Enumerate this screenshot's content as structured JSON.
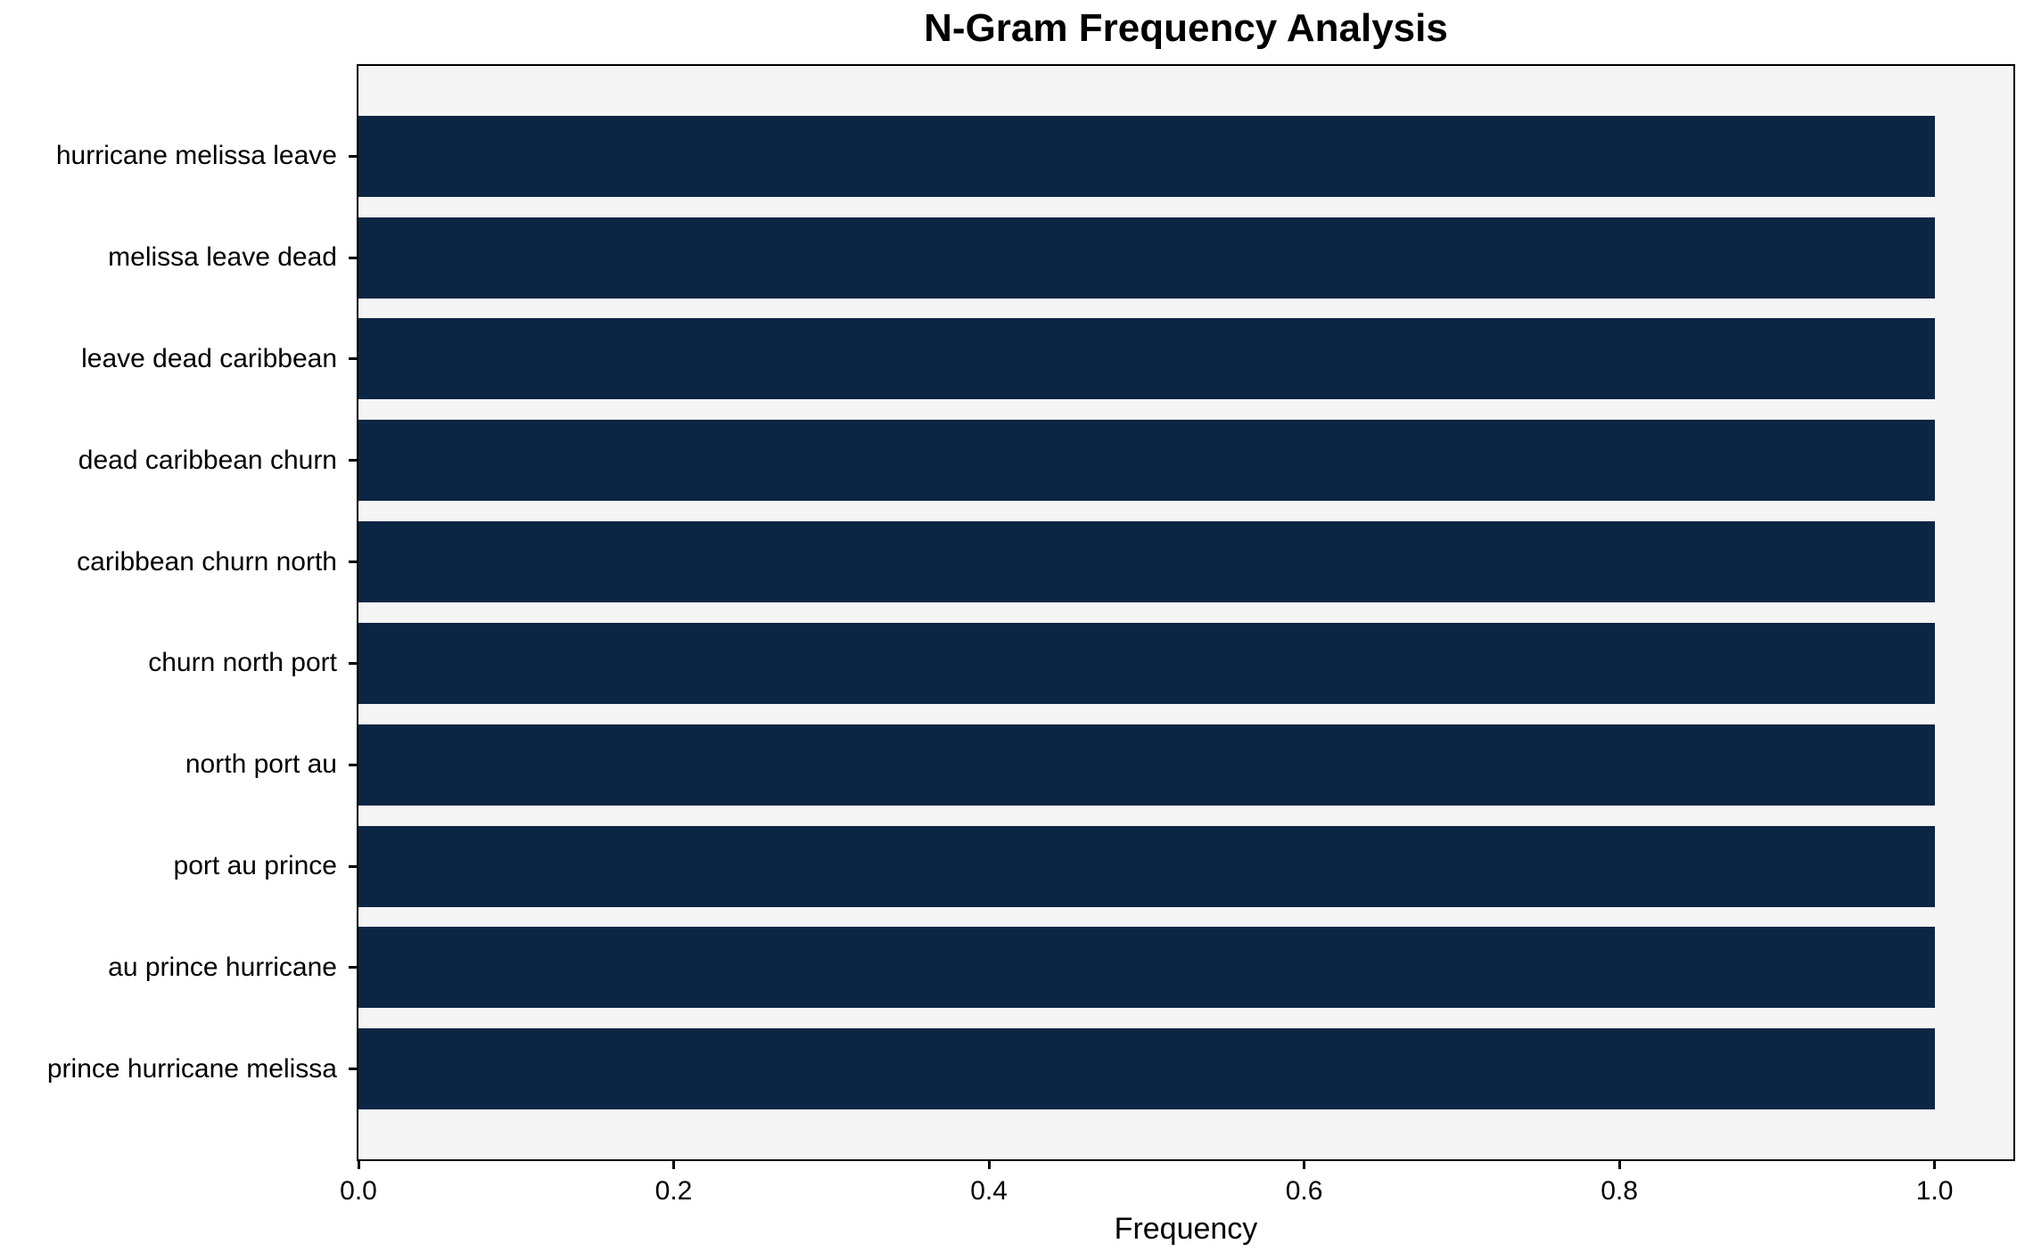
{
  "chart_data": {
    "type": "bar",
    "orientation": "horizontal",
    "title": "N-Gram Frequency Analysis",
    "xlabel": "Frequency",
    "ylabel": "",
    "categories": [
      "hurricane melissa leave",
      "melissa leave dead",
      "leave dead caribbean",
      "dead caribbean churn",
      "caribbean churn north",
      "churn north port",
      "north port au",
      "port au prince",
      "au prince hurricane",
      "prince hurricane melissa"
    ],
    "values": [
      1.0,
      1.0,
      1.0,
      1.0,
      1.0,
      1.0,
      1.0,
      1.0,
      1.0,
      1.0
    ],
    "xticks": [
      "0.0",
      "0.2",
      "0.4",
      "0.6",
      "0.8",
      "1.0"
    ],
    "xtick_values": [
      0.0,
      0.2,
      0.4,
      0.6,
      0.8,
      1.0
    ],
    "xlim": [
      0,
      1.05
    ],
    "grid": false,
    "legend_position": "none",
    "colors": {
      "bar": "#0b2545",
      "plot_bg": "#f5f5f5",
      "figure_bg": "#ffffff",
      "axis": "#000000",
      "text": "#000000"
    }
  }
}
